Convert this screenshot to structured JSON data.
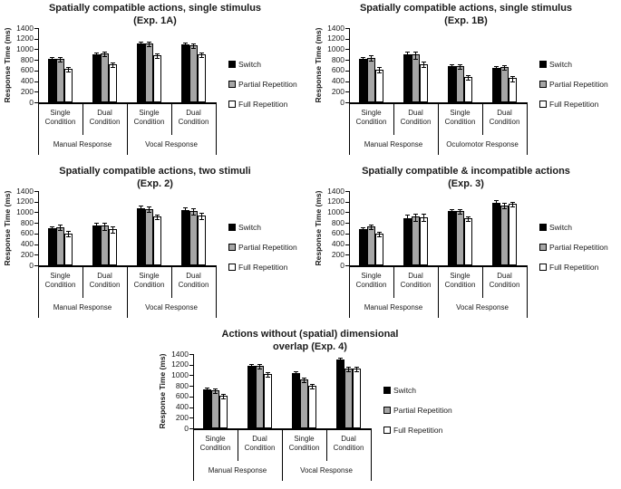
{
  "figure": {
    "background": "#ffffff",
    "bar_colors": {
      "switch": "#000000",
      "partial_repetition": "#a6a6a6",
      "full_repetition": "#ffffff"
    },
    "bar_border_color": "#000000",
    "text_color": "#1a1a1a"
  },
  "chart_data": [
    {
      "id": "exp-1a",
      "type": "bar",
      "title": "Spatially compatible actions, single stimulus (Exp. 1A)",
      "title_line1": "Spatially compatible actions, single stimulus",
      "title_line2": "(Exp. 1A)",
      "ylabel": "Response Time (ms)",
      "ylim": [
        0,
        1400
      ],
      "yticks": [
        0,
        200,
        400,
        600,
        800,
        1000,
        1200,
        1400
      ],
      "grid": false,
      "legend_position": "right",
      "categories": [
        [
          "Single",
          "Condition"
        ],
        [
          "Dual",
          "Condition"
        ],
        [
          "Single",
          "Condition"
        ],
        [
          "Dual",
          "Condition"
        ]
      ],
      "group_labels": [
        "Manual Response",
        "Vocal Response"
      ],
      "series": [
        {
          "name": "Switch",
          "color": "#000000",
          "values": [
            815,
            900,
            1110,
            1090
          ],
          "errors": [
            30,
            30,
            25,
            35
          ]
        },
        {
          "name": "Partial Repetition",
          "color": "#a6a6a6",
          "values": [
            825,
            930,
            1105,
            1075
          ],
          "errors": [
            25,
            30,
            30,
            40
          ]
        },
        {
          "name": "Full Repetition",
          "color": "#ffffff",
          "values": [
            640,
            720,
            890,
            900
          ],
          "errors": [
            30,
            35,
            35,
            35
          ]
        }
      ]
    },
    {
      "id": "exp-1b",
      "type": "bar",
      "title": "Spatially compatible actions, single stimulus (Exp. 1B)",
      "title_line1": "Spatially compatible actions, single stimulus",
      "title_line2": "(Exp. 1B)",
      "ylabel": "Response Time (ms)",
      "ylim": [
        0,
        1400
      ],
      "yticks": [
        0,
        200,
        400,
        600,
        800,
        1000,
        1200,
        1400
      ],
      "grid": false,
      "legend_position": "right",
      "categories": [
        [
          "Single",
          "Condition"
        ],
        [
          "Dual",
          "Condition"
        ],
        [
          "Single",
          "Condition"
        ],
        [
          "Dual",
          "Condition"
        ]
      ],
      "group_labels": [
        "Manual Response",
        "Oculomotor Response"
      ],
      "series": [
        {
          "name": "Switch",
          "color": "#000000",
          "values": [
            820,
            905,
            690,
            650
          ],
          "errors": [
            40,
            55,
            30,
            40
          ]
        },
        {
          "name": "Partial Repetition",
          "color": "#a6a6a6",
          "values": [
            840,
            900,
            690,
            665
          ],
          "errors": [
            40,
            55,
            35,
            40
          ]
        },
        {
          "name": "Full Repetition",
          "color": "#ffffff",
          "values": [
            620,
            720,
            475,
            455
          ],
          "errors": [
            40,
            45,
            30,
            45
          ]
        }
      ]
    },
    {
      "id": "exp-2",
      "type": "bar",
      "title": "Spatially compatible actions, two stimuli (Exp. 2)",
      "title_line1": "Spatially compatible actions, two stimuli",
      "title_line2": "(Exp. 2)",
      "ylabel": "Response Time (ms)",
      "ylim": [
        0,
        1400
      ],
      "yticks": [
        0,
        200,
        400,
        600,
        800,
        1000,
        1200,
        1400
      ],
      "grid": false,
      "legend_position": "right",
      "categories": [
        [
          "Single",
          "Condition"
        ],
        [
          "Dual",
          "Condition"
        ],
        [
          "Single",
          "Condition"
        ],
        [
          "Dual",
          "Condition"
        ]
      ],
      "group_labels": [
        "Manual Response",
        "Vocal Response"
      ],
      "series": [
        {
          "name": "Switch",
          "color": "#000000",
          "values": [
            700,
            755,
            1080,
            1035
          ],
          "errors": [
            35,
            45,
            40,
            50
          ]
        },
        {
          "name": "Partial Repetition",
          "color": "#a6a6a6",
          "values": [
            725,
            745,
            1065,
            1020
          ],
          "errors": [
            35,
            65,
            40,
            50
          ]
        },
        {
          "name": "Full Repetition",
          "color": "#ffffff",
          "values": [
            605,
            685,
            920,
            945
          ],
          "errors": [
            40,
            55,
            40,
            50
          ]
        }
      ]
    },
    {
      "id": "exp-3",
      "type": "bar",
      "title": "Spatially compatible & incompatible actions (Exp. 3)",
      "title_line1": "Spatially compatible & incompatible actions",
      "title_line2": "(Exp. 3)",
      "ylabel": "Response Time (ms)",
      "ylim": [
        0,
        1400
      ],
      "yticks": [
        0,
        200,
        400,
        600,
        800,
        1000,
        1200,
        1400
      ],
      "grid": false,
      "legend_position": "right",
      "categories": [
        [
          "Single",
          "Condition"
        ],
        [
          "Dual",
          "Condition"
        ],
        [
          "Single",
          "Condition"
        ],
        [
          "Dual",
          "Condition"
        ]
      ],
      "group_labels": [
        "Manual Response",
        "Vocal Response"
      ],
      "series": [
        {
          "name": "Switch",
          "color": "#000000",
          "values": [
            675,
            880,
            1020,
            1180
          ],
          "errors": [
            40,
            70,
            35,
            45
          ]
        },
        {
          "name": "Partial Repetition",
          "color": "#a6a6a6",
          "values": [
            730,
            920,
            1025,
            1130
          ],
          "errors": [
            30,
            60,
            35,
            45
          ]
        },
        {
          "name": "Full Repetition",
          "color": "#ffffff",
          "values": [
            600,
            905,
            895,
            1155
          ],
          "errors": [
            30,
            60,
            30,
            35
          ]
        }
      ]
    },
    {
      "id": "exp-4",
      "type": "bar",
      "title": "Actions without (spatial) dimensional overlap (Exp. 4)",
      "title_line1": "Actions without (spatial) dimensional",
      "title_line2": "overlap (Exp. 4)",
      "ylabel": "Response Time (ms)",
      "ylim": [
        0,
        1400
      ],
      "yticks": [
        0,
        200,
        400,
        600,
        800,
        1000,
        1200,
        1400
      ],
      "grid": false,
      "legend_position": "right",
      "categories": [
        [
          "Single",
          "Condition"
        ],
        [
          "Dual",
          "Condition"
        ],
        [
          "Single",
          "Condition"
        ],
        [
          "Dual",
          "Condition"
        ]
      ],
      "group_labels": [
        "Manual Response",
        "Vocal Response"
      ],
      "series": [
        {
          "name": "Switch",
          "color": "#000000",
          "values": [
            740,
            1175,
            1040,
            1290
          ],
          "errors": [
            25,
            35,
            30,
            35
          ]
        },
        {
          "name": "Partial Repetition",
          "color": "#a6a6a6",
          "values": [
            710,
            1180,
            920,
            1130
          ],
          "errors": [
            30,
            30,
            25,
            30
          ]
        },
        {
          "name": "Full Repetition",
          "color": "#ffffff",
          "values": [
            610,
            1025,
            810,
            1130
          ],
          "errors": [
            25,
            40,
            25,
            30
          ]
        }
      ]
    }
  ]
}
